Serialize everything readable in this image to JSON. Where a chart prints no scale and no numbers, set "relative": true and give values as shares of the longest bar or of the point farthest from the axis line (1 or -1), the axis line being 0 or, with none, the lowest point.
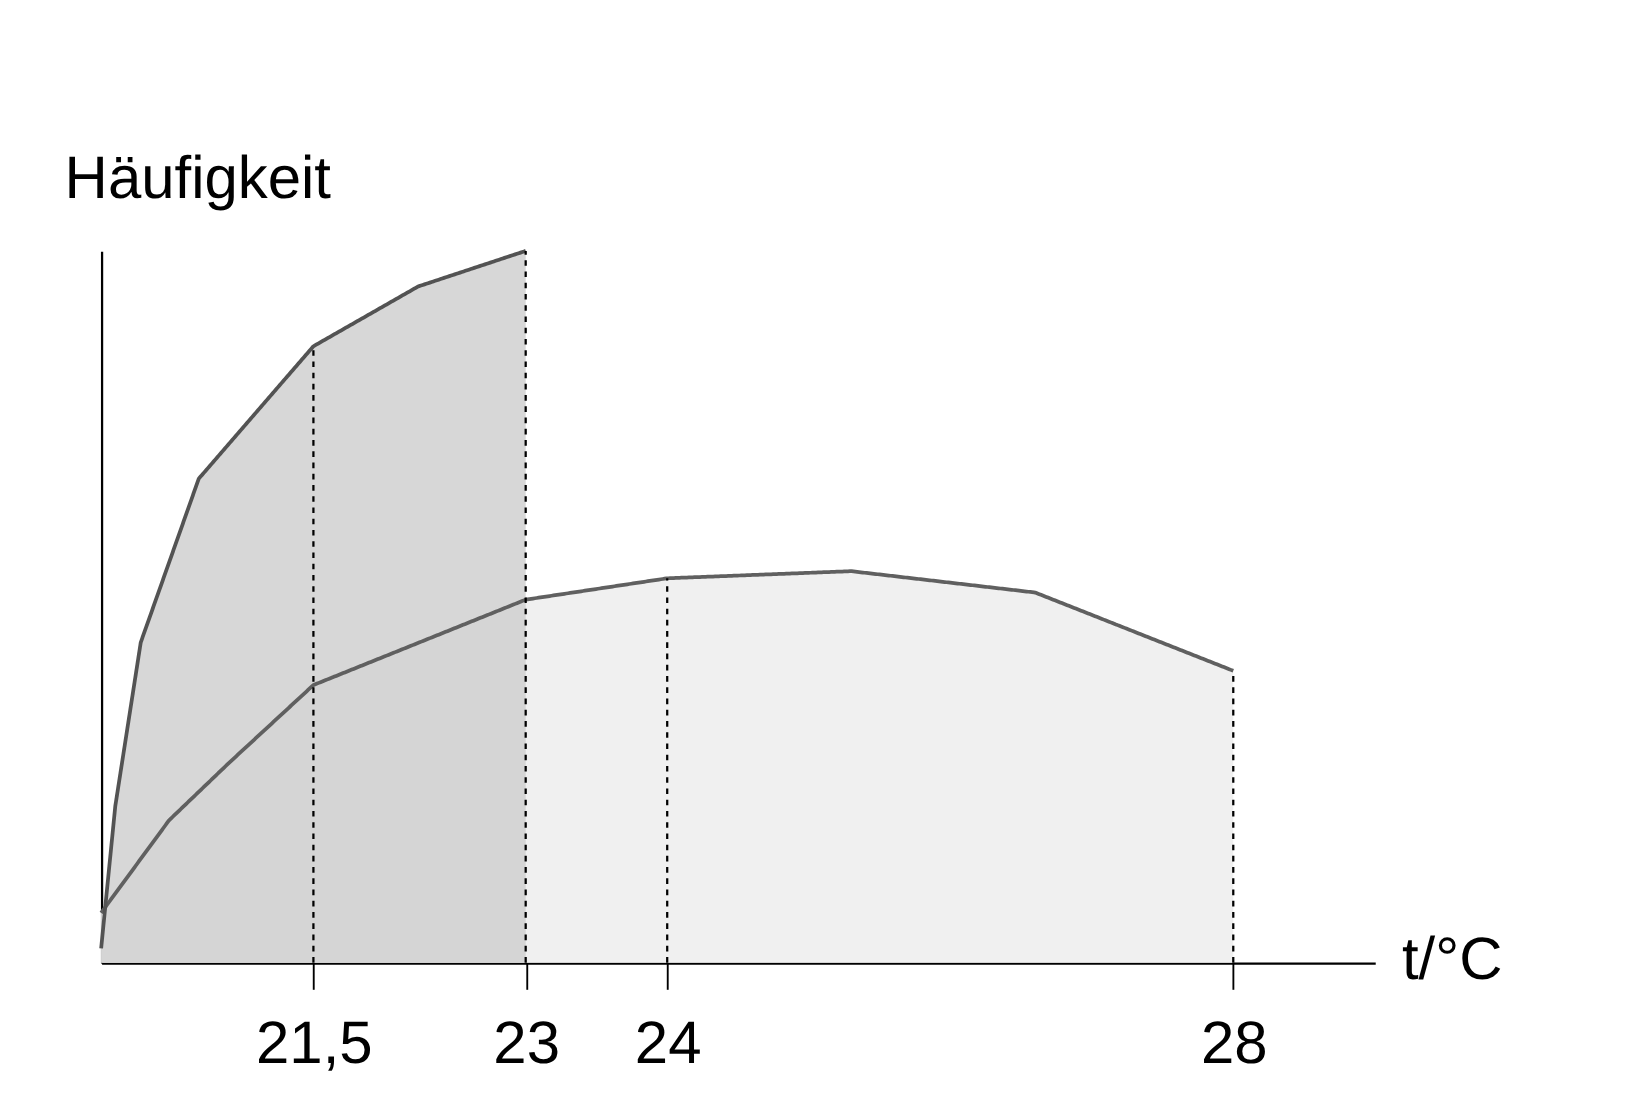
{
  "chart_data": {
    "type": "area",
    "relative": true,
    "ylabel": "Häufigkeit",
    "xlabel": "t/°C",
    "xlim": [
      20,
      29
    ],
    "xticks": [
      {
        "value": 21.5,
        "label": "21,5"
      },
      23,
      24,
      28
    ],
    "grid": false,
    "series": [
      {
        "color": "#f0f0f0",
        "x": [
          20,
          20.48,
          20.9,
          21.5,
          23,
          24,
          25.3,
          26.6,
          28
        ],
        "values": [
          0.07,
          0.2,
          0.28,
          0.39,
          0.51,
          0.54,
          0.55,
          0.52,
          0.41
        ]
      },
      {
        "color": "#d0d0d0",
        "x": [
          20,
          20.1,
          20.28,
          20.69,
          21.5,
          22.24,
          23
        ],
        "values": [
          0.02,
          0.22,
          0.45,
          0.68,
          0.866,
          0.95,
          1
        ]
      }
    ],
    "ref_lines": [
      {
        "axis": "x",
        "value": 21.5,
        "line_style": "dotted"
      },
      {
        "axis": "x",
        "value": 23,
        "line_style": "dotted"
      },
      {
        "axis": "x",
        "value": 24,
        "line_style": "dotted"
      },
      {
        "axis": "x",
        "value": 28,
        "line_style": "dotted"
      }
    ]
  }
}
